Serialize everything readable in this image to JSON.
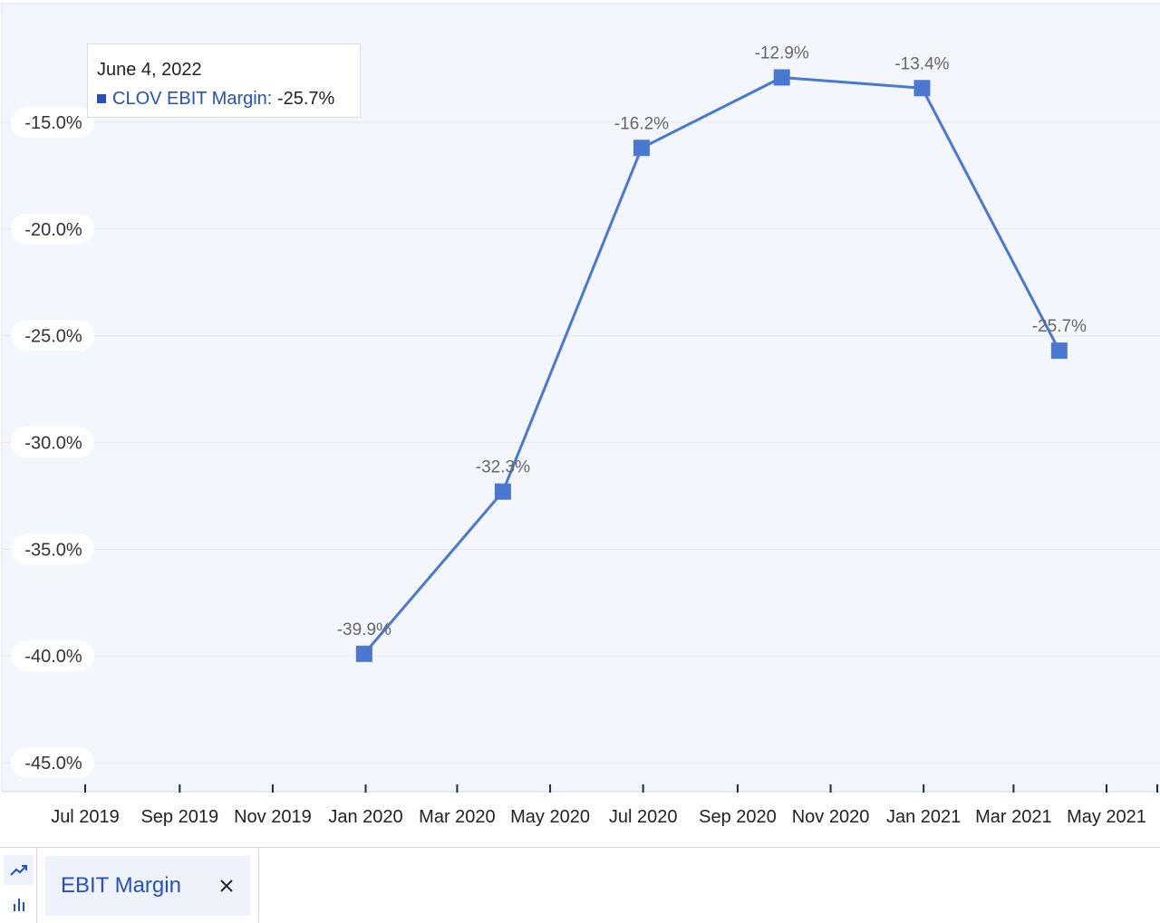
{
  "chart_data": {
    "type": "line",
    "title": "",
    "xlabel": "",
    "ylabel": "",
    "x_tick_labels": [
      "Jul 2019",
      "Sep 2019",
      "Nov 2019",
      "Jan 2020",
      "Mar 2020",
      "May 2020",
      "Jul 2020",
      "Sep 2020",
      "Nov 2020",
      "Jan 2021",
      "Mar 2021",
      "May 2021"
    ],
    "y_ticks": [
      -15,
      -20,
      -25,
      -30,
      -35,
      -40,
      -45
    ],
    "y_tick_labels": [
      "-15.0%",
      "-20.0%",
      "-25.0%",
      "-30.0%",
      "-35.0%",
      "-40.0%",
      "-45.0%"
    ],
    "ylim": [
      -46,
      -10
    ],
    "grid": true,
    "series": [
      {
        "name": "CLOV EBIT Margin",
        "color": "#4a78d0",
        "x": [
          "2019-12-31",
          "2020-03-31",
          "2020-06-30",
          "2020-09-30",
          "2020-12-31",
          "2021-03-31"
        ],
        "values": [
          -39.9,
          -32.3,
          -16.2,
          -12.9,
          -13.4,
          -25.7
        ],
        "labels": [
          "-39.9%",
          "-32.3%",
          "-16.2%",
          "-12.9%",
          "-13.4%",
          "-25.7%"
        ]
      }
    ]
  },
  "tooltip": {
    "date": "June 4, 2022",
    "series_label": "CLOV EBIT Margin:",
    "value": "-25.7%"
  },
  "controls": {
    "line_chart_icon": "trend-line-icon",
    "bar_chart_icon": "bar-chart-icon",
    "series_chip_label": "EBIT Margin",
    "close_icon": "close-icon"
  },
  "colors": {
    "accent": "#2550c0",
    "line": "#4a78d0",
    "plot_bg": "#f3f6fc"
  }
}
